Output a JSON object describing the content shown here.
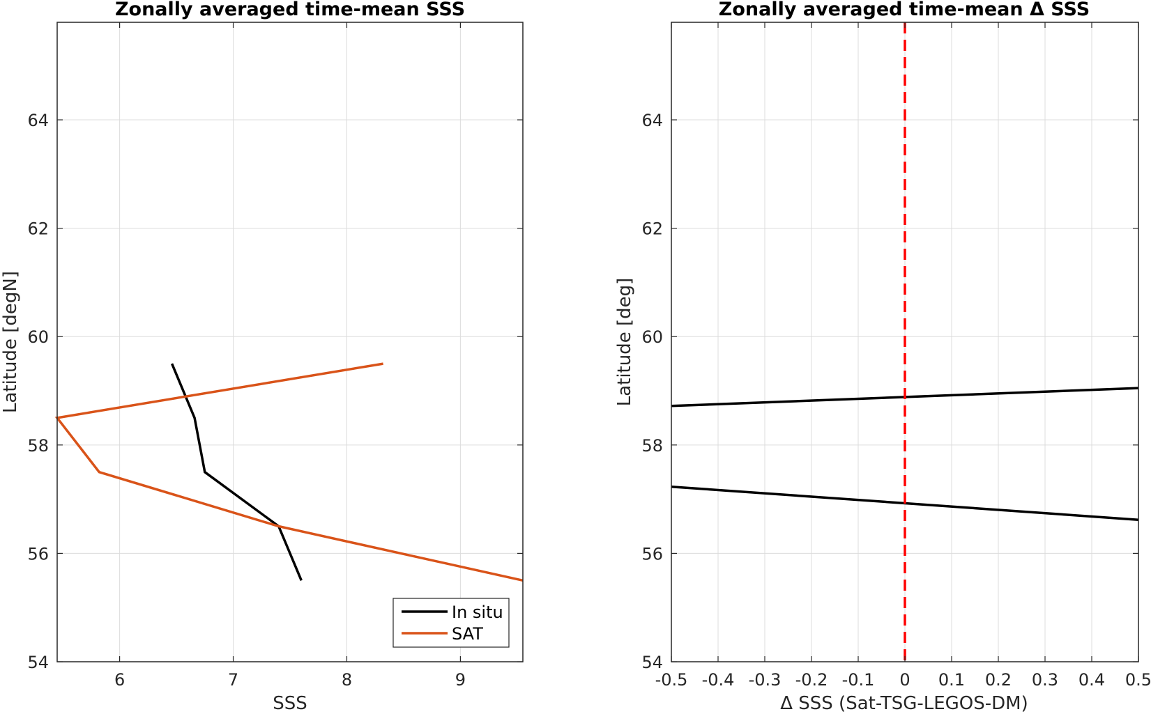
{
  "chart_data": [
    {
      "type": "line",
      "title": "Zonally averaged time-mean SSS",
      "xlabel": "SSS",
      "ylabel": "Latitude [degN]",
      "xlim": [
        5.45,
        9.55
      ],
      "ylim": [
        54,
        65.8
      ],
      "xticks": [
        6,
        7,
        8,
        9
      ],
      "yticks": [
        54,
        56,
        58,
        60,
        62,
        64
      ],
      "grid": true,
      "legend": {
        "position": "bottom-right"
      },
      "series": [
        {
          "name": "In situ",
          "color": "#000000",
          "x": [
            7.6,
            7.4,
            6.75,
            6.66,
            6.46
          ],
          "y": [
            55.5,
            56.5,
            57.5,
            58.5,
            59.5
          ]
        },
        {
          "name": "SAT",
          "color": "#D95319",
          "x": [
            9.55,
            7.4,
            5.82,
            5.45,
            8.32
          ],
          "y": [
            55.5,
            56.5,
            57.5,
            58.5,
            59.5
          ]
        }
      ]
    },
    {
      "type": "line",
      "title": "Zonally averaged time-mean Δ SSS",
      "xlabel": "Δ SSS (Sat-TSG-LEGOS-DM)",
      "ylabel": "Latitude [deg]",
      "xlim": [
        -0.5,
        0.5
      ],
      "ylim": [
        54,
        65.8
      ],
      "xticks": [
        -0.5,
        -0.4,
        -0.3,
        -0.2,
        -0.1,
        0,
        0.1,
        0.2,
        0.3,
        0.4,
        0.5
      ],
      "xticklabels": [
        "-0.5",
        "-0.4",
        "-0.3",
        "-0.2",
        "-0.1",
        "0",
        "0.1",
        "0.2",
        "0.3",
        "0.4",
        "0.5"
      ],
      "yticks": [
        54,
        56,
        58,
        60,
        62,
        64
      ],
      "grid": true,
      "reference_line": {
        "x": 0,
        "color": "#FF0000",
        "style": "dashed"
      },
      "series": [
        {
          "color": "#000000",
          "x": [
            -0.5,
            0.5
          ],
          "y": [
            58.72,
            59.05
          ]
        },
        {
          "color": "#000000",
          "x": [
            -0.5,
            0.5
          ],
          "y": [
            57.23,
            56.62
          ]
        }
      ]
    }
  ]
}
